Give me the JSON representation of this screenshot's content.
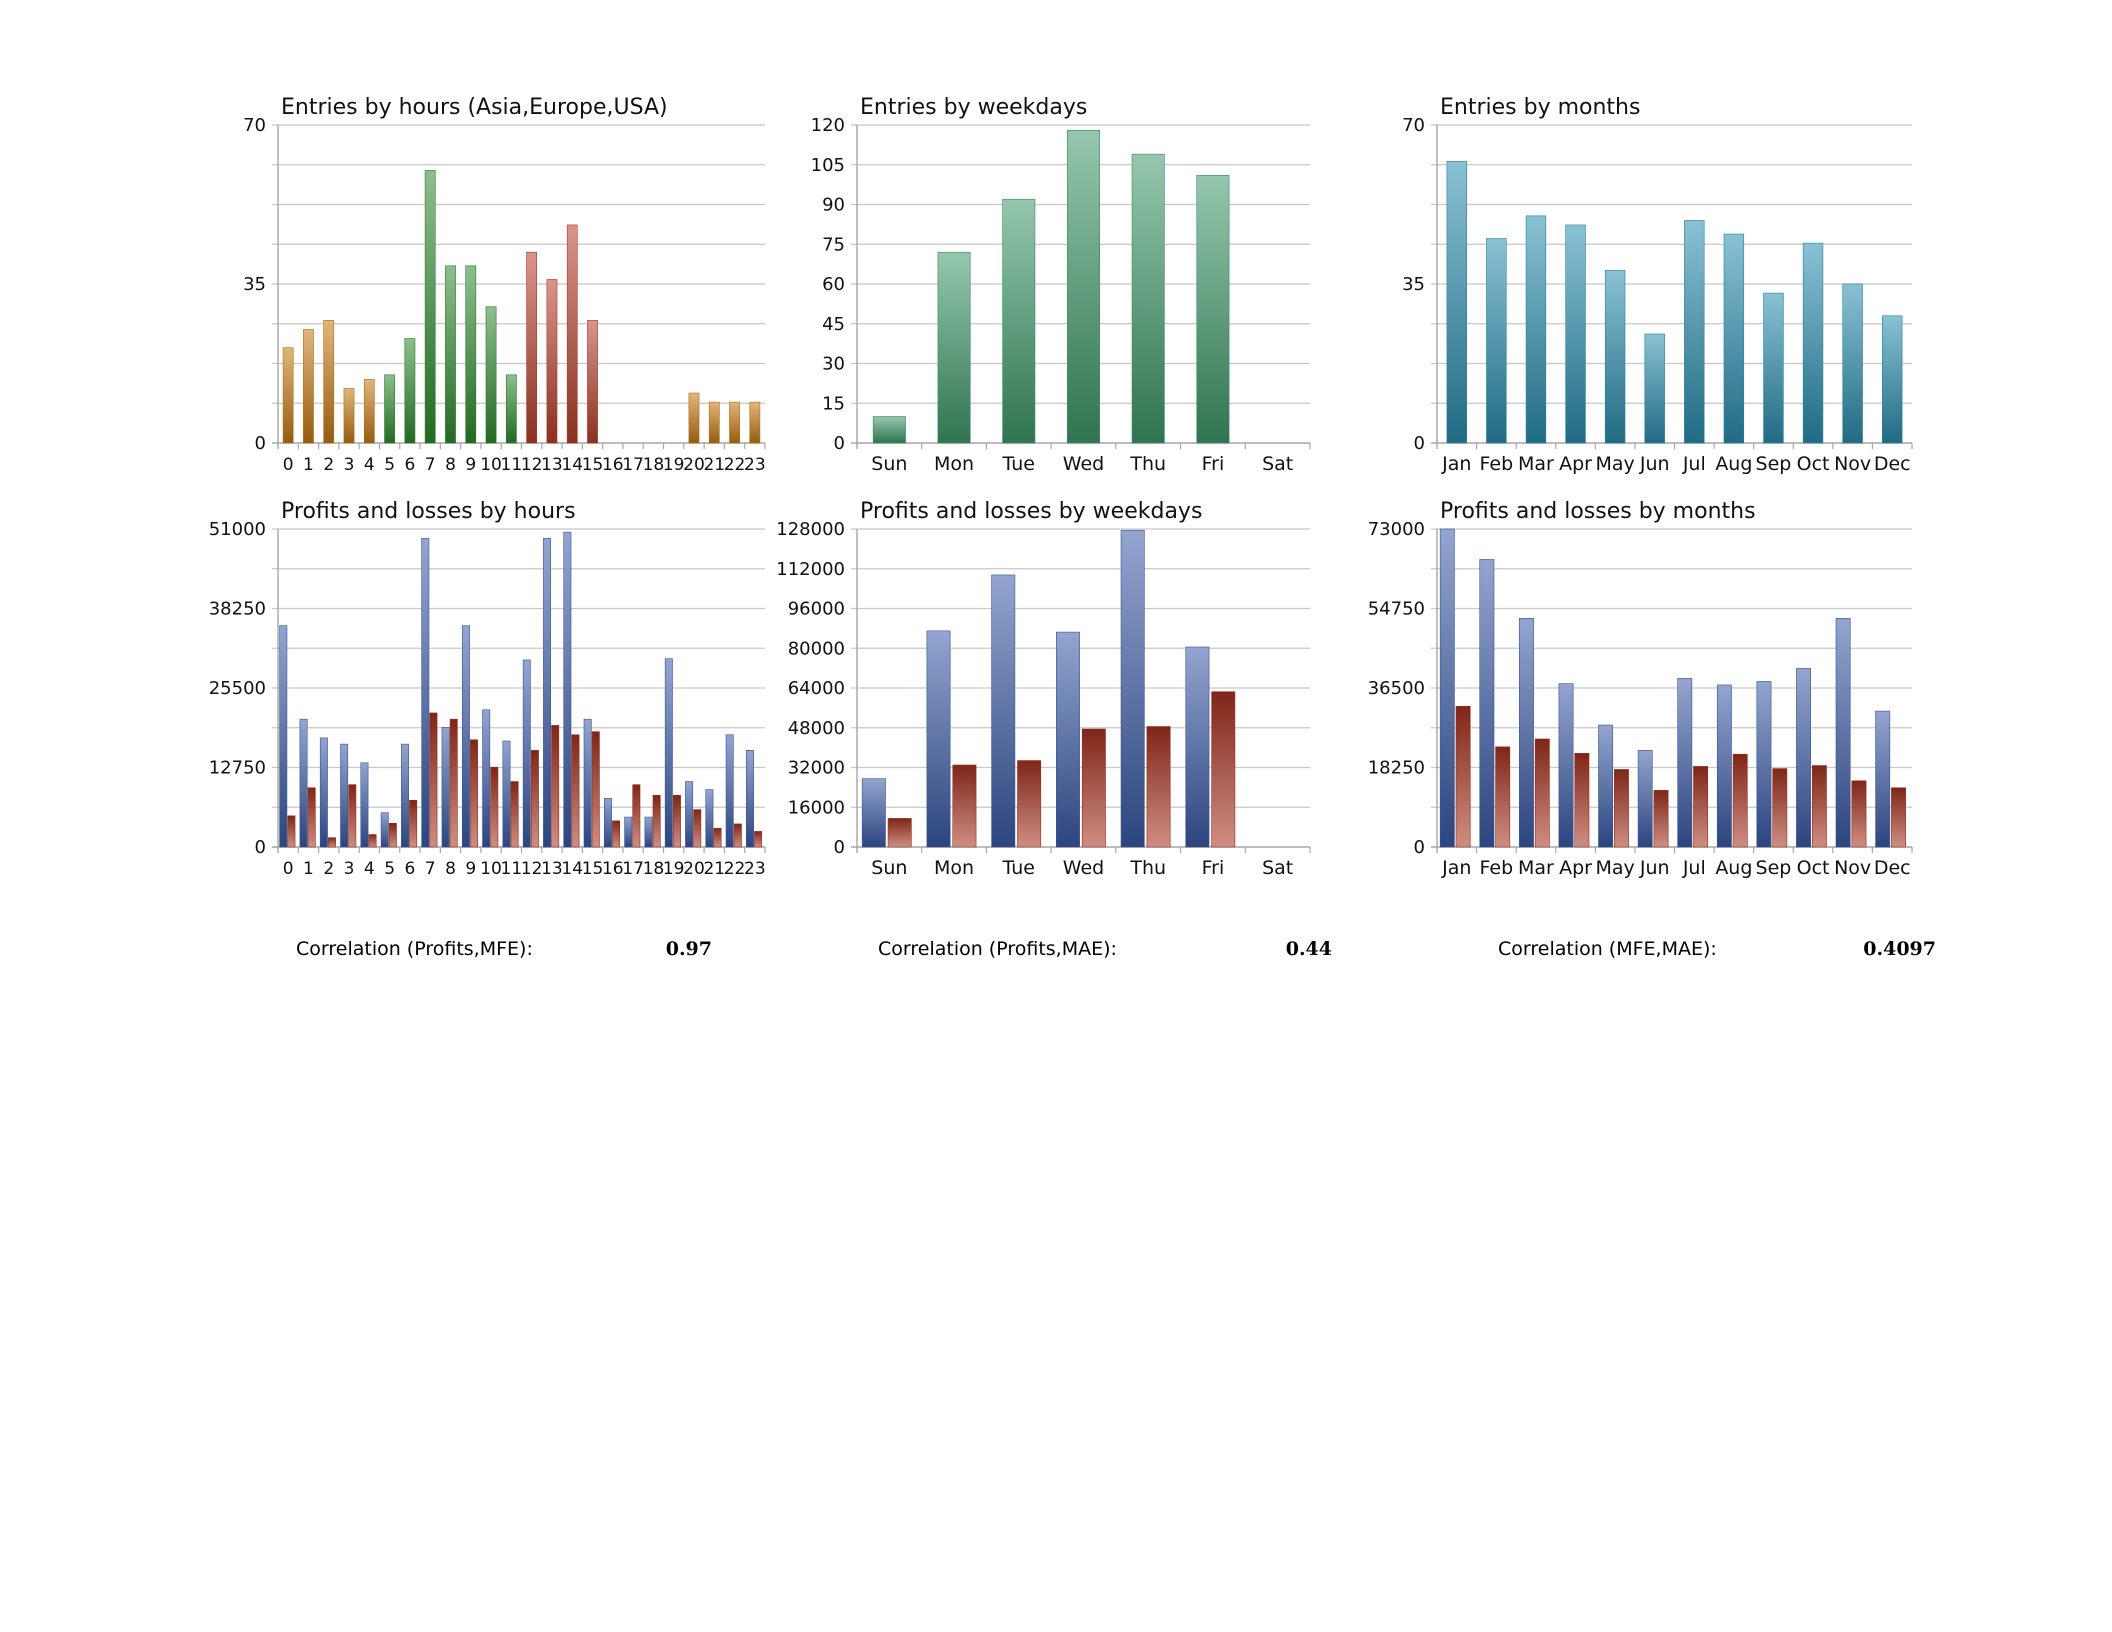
{
  "colors": {
    "grid": "#c8c8c8",
    "axis": "#a6a6a6",
    "profit_blue": "#3a5ca8",
    "loss_red": "#a8321e",
    "asia_orange": "#c67a12",
    "europe_green": "#2e8a2e",
    "usa_red": "#b8402c",
    "weekday_green": "#3f9a6a",
    "month_teal": "#2b8fb0"
  },
  "chart_data": [
    {
      "id": "entries-hours",
      "type": "bar",
      "title": "Entries by hours (Asia,Europe,USA)",
      "categories": [
        "0",
        "1",
        "2",
        "3",
        "4",
        "5",
        "6",
        "7",
        "8",
        "9",
        "10",
        "11",
        "12",
        "13",
        "14",
        "15",
        "16",
        "17",
        "18",
        "19",
        "20",
        "21",
        "22",
        "23"
      ],
      "yticks": [
        0,
        35,
        70
      ],
      "ylim": [
        0,
        70
      ],
      "grid": true,
      "series": [
        {
          "values": [
            21,
            25,
            27,
            12,
            14,
            15,
            23,
            60,
            39,
            39,
            30,
            15,
            42,
            36,
            48,
            27,
            0,
            0,
            0,
            0,
            11,
            9,
            9,
            9
          ],
          "colors": [
            "asia",
            "asia",
            "asia",
            "asia",
            "asia",
            "europe",
            "europe",
            "europe",
            "europe",
            "europe",
            "europe",
            "europe",
            "usa",
            "usa",
            "usa",
            "usa",
            "usa",
            "asia",
            "asia",
            "asia",
            "asia",
            "asia",
            "asia",
            "asia"
          ]
        }
      ]
    },
    {
      "id": "entries-weekdays",
      "type": "bar",
      "title": "Entries by weekdays",
      "categories": [
        "Sun",
        "Mon",
        "Tue",
        "Wed",
        "Thu",
        "Fri",
        "Sat"
      ],
      "yticks": [
        0,
        15,
        30,
        45,
        60,
        75,
        90,
        105,
        120
      ],
      "ylim": [
        0,
        120
      ],
      "grid": true,
      "series": [
        {
          "values": [
            10,
            72,
            92,
            118,
            109,
            101,
            0
          ]
        }
      ]
    },
    {
      "id": "entries-months",
      "type": "bar",
      "title": "Entries by months",
      "categories": [
        "Jan",
        "Feb",
        "Mar",
        "Apr",
        "May",
        "Jun",
        "Jul",
        "Aug",
        "Sep",
        "Oct",
        "Nov",
        "Dec"
      ],
      "yticks": [
        0,
        35,
        70
      ],
      "ylim": [
        0,
        70
      ],
      "grid": true,
      "series": [
        {
          "values": [
            62,
            45,
            50,
            48,
            38,
            24,
            49,
            46,
            33,
            44,
            35,
            28
          ]
        }
      ]
    },
    {
      "id": "pl-hours",
      "type": "bar",
      "title": "Profits and losses by hours",
      "categories": [
        "0",
        "1",
        "2",
        "3",
        "4",
        "5",
        "6",
        "7",
        "8",
        "9",
        "10",
        "11",
        "12",
        "13",
        "14",
        "15",
        "16",
        "17",
        "18",
        "19",
        "20",
        "21",
        "22",
        "23"
      ],
      "yticks": [
        0,
        12750,
        25500,
        38250,
        51000
      ],
      "ylim": [
        0,
        51000
      ],
      "grid": true,
      "series": [
        {
          "values": [
            35500,
            20500,
            17500,
            16500,
            13500,
            5500,
            16500,
            49500,
            19200,
            35500,
            22000,
            17000,
            30000,
            49500,
            50500,
            20500,
            7800,
            4800,
            4800,
            30200,
            10500,
            9200,
            18000,
            15500
          ]
        },
        {
          "values": [
            5000,
            9500,
            1500,
            10000,
            2000,
            3800,
            7500,
            21500,
            20500,
            17200,
            12800,
            10500,
            15500,
            19500,
            18000,
            18500,
            4200,
            10000,
            8300,
            8300,
            6000,
            3000,
            3700,
            2500
          ]
        }
      ]
    },
    {
      "id": "pl-weekdays",
      "type": "bar",
      "title": "Profits and losses by weekdays",
      "categories": [
        "Sun",
        "Mon",
        "Tue",
        "Wed",
        "Thu",
        "Fri",
        "Sat"
      ],
      "yticks": [
        0,
        16000,
        32000,
        48000,
        64000,
        80000,
        96000,
        112000,
        128000
      ],
      "ylim": [
        0,
        128000
      ],
      "grid": true,
      "series": [
        {
          "values": [
            27500,
            87000,
            109500,
            86500,
            127500,
            80500,
            0
          ]
        },
        {
          "values": [
            11500,
            33000,
            34800,
            47500,
            48500,
            62500,
            0
          ]
        }
      ]
    },
    {
      "id": "pl-months",
      "type": "bar",
      "title": "Profits and losses by months",
      "categories": [
        "Jan",
        "Feb",
        "Mar",
        "Apr",
        "May",
        "Jun",
        "Jul",
        "Aug",
        "Sep",
        "Oct",
        "Nov",
        "Dec"
      ],
      "yticks": [
        0,
        18250,
        36500,
        54750,
        73000
      ],
      "ylim": [
        0,
        73000
      ],
      "grid": true,
      "series": [
        {
          "values": [
            73000,
            66000,
            52500,
            37500,
            28000,
            22200,
            38700,
            37200,
            38000,
            41000,
            52500,
            31200
          ]
        },
        {
          "values": [
            32300,
            23000,
            24800,
            21500,
            17800,
            13000,
            18500,
            21300,
            18000,
            18700,
            15200,
            13600
          ]
        }
      ]
    }
  ],
  "correlations": [
    {
      "label": "Correlation (Profits,MFE):",
      "value": "0.97"
    },
    {
      "label": "Correlation (Profits,MAE):",
      "value": "0.44"
    },
    {
      "label": "Correlation (MFE,MAE):",
      "value": "0.4097"
    }
  ]
}
